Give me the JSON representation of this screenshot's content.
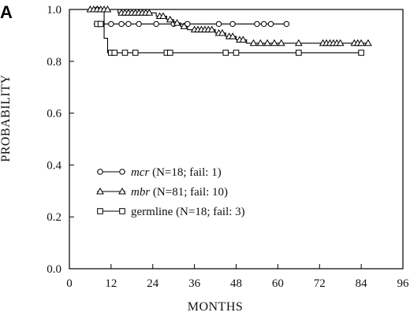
{
  "panel_label": "A",
  "chart_data": {
    "type": "line",
    "step": true,
    "xlabel": "MONTHS",
    "ylabel": "PROBABILITY",
    "xlim": [
      0,
      96
    ],
    "ylim": [
      0.0,
      1.0
    ],
    "xticks": [
      0,
      12,
      24,
      36,
      48,
      60,
      72,
      84,
      96
    ],
    "yticks": [
      0.0,
      0.2,
      0.4,
      0.6,
      0.8,
      1.0
    ],
    "ytick_labels": [
      "0.0",
      "0.2",
      "0.4",
      "0.6",
      "0.8",
      "1.0"
    ],
    "grid": false,
    "legend_position": "lower-left",
    "series": [
      {
        "key": "mcr",
        "name_italic": "mcr",
        "name_rest": " (N=18; fail: 1)",
        "marker": "circle",
        "steps": [
          [
            6,
            1.0
          ],
          [
            10,
            0.944
          ]
        ],
        "end_x": 62.5,
        "censor": [
          [
            8,
            1.0
          ],
          [
            12,
            0.944
          ],
          [
            15,
            0.944
          ],
          [
            17,
            0.944
          ],
          [
            20,
            0.944
          ],
          [
            25,
            0.944
          ],
          [
            30,
            0.944
          ],
          [
            34,
            0.944
          ],
          [
            43,
            0.944
          ],
          [
            47,
            0.944
          ],
          [
            54,
            0.944
          ],
          [
            56,
            0.944
          ],
          [
            58,
            0.944
          ],
          [
            62.5,
            0.944
          ]
        ]
      },
      {
        "key": "mbr",
        "name_italic": "mbr",
        "name_rest": " (N=81; fail: 10)",
        "marker": "triangle",
        "steps": [
          [
            5,
            1.0
          ],
          [
            14,
            0.987
          ],
          [
            25,
            0.974
          ],
          [
            28,
            0.961
          ],
          [
            30,
            0.948
          ],
          [
            32,
            0.935
          ],
          [
            34,
            0.922
          ],
          [
            42,
            0.909
          ],
          [
            45,
            0.896
          ],
          [
            48,
            0.883
          ],
          [
            51,
            0.87
          ]
        ],
        "end_x": 86,
        "censor": [
          [
            6,
            1.0
          ],
          [
            7,
            1.0
          ],
          [
            8,
            1.0
          ],
          [
            9,
            1.0
          ],
          [
            10,
            1.0
          ],
          [
            11,
            1.0
          ],
          [
            15,
            0.987
          ],
          [
            16,
            0.987
          ],
          [
            17,
            0.987
          ],
          [
            18,
            0.987
          ],
          [
            19,
            0.987
          ],
          [
            20,
            0.987
          ],
          [
            21,
            0.987
          ],
          [
            22,
            0.987
          ],
          [
            23,
            0.987
          ],
          [
            26,
            0.974
          ],
          [
            27,
            0.974
          ],
          [
            29,
            0.961
          ],
          [
            31,
            0.948
          ],
          [
            33,
            0.935
          ],
          [
            36,
            0.922
          ],
          [
            37,
            0.922
          ],
          [
            38,
            0.922
          ],
          [
            39,
            0.922
          ],
          [
            40,
            0.922
          ],
          [
            41,
            0.922
          ],
          [
            43,
            0.909
          ],
          [
            44,
            0.909
          ],
          [
            46,
            0.896
          ],
          [
            47,
            0.896
          ],
          [
            49,
            0.883
          ],
          [
            50,
            0.883
          ],
          [
            53,
            0.87
          ],
          [
            55,
            0.87
          ],
          [
            57,
            0.87
          ],
          [
            59,
            0.87
          ],
          [
            61,
            0.87
          ],
          [
            66,
            0.87
          ],
          [
            73,
            0.87
          ],
          [
            74,
            0.87
          ],
          [
            75,
            0.87
          ],
          [
            76,
            0.87
          ],
          [
            77,
            0.87
          ],
          [
            78,
            0.87
          ],
          [
            82,
            0.87
          ],
          [
            83,
            0.87
          ],
          [
            84,
            0.87
          ],
          [
            86,
            0.87
          ]
        ]
      },
      {
        "key": "germline",
        "name_italic": "",
        "name_rest": "germline (N=18; fail: 3)",
        "marker": "square",
        "steps": [
          [
            7,
            0.944
          ],
          [
            10,
            0.889
          ],
          [
            11,
            0.833
          ]
        ],
        "end_x": 84,
        "censor": [
          [
            8,
            0.944
          ],
          [
            9,
            0.944
          ],
          [
            12,
            0.833
          ],
          [
            13,
            0.833
          ],
          [
            16,
            0.833
          ],
          [
            19,
            0.833
          ],
          [
            28,
            0.833
          ],
          [
            29,
            0.833
          ],
          [
            45,
            0.833
          ],
          [
            48,
            0.833
          ],
          [
            66,
            0.833
          ],
          [
            84,
            0.833
          ]
        ]
      }
    ]
  }
}
